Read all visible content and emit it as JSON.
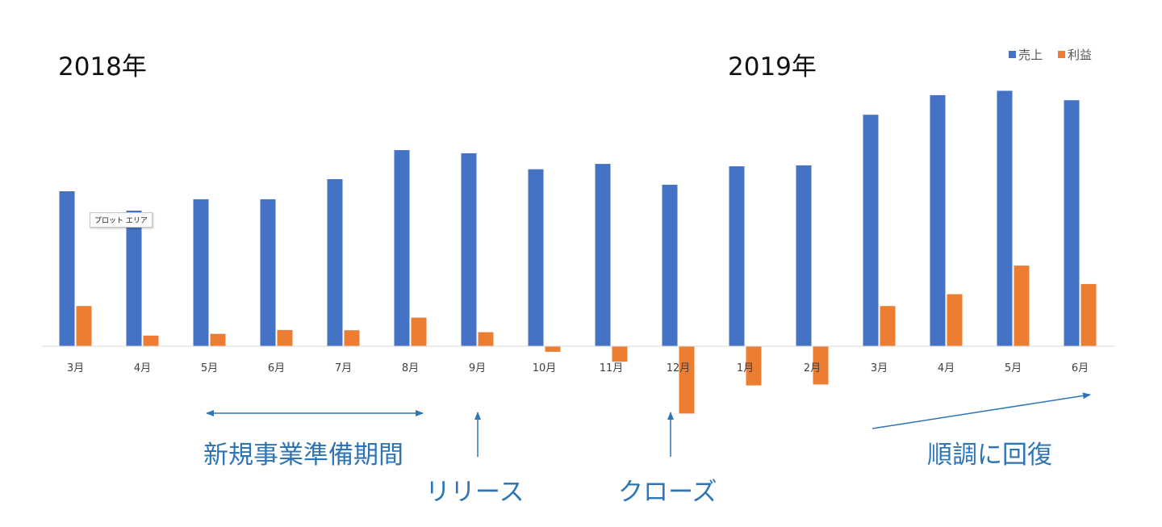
{
  "year_labels": [
    "2018年",
    "2019年"
  ],
  "tooltip": "プロット エリア",
  "colors": {
    "sales": "#4472c4",
    "profit": "#ed7d31",
    "annotation": "#2e75b6"
  },
  "chart_data": {
    "type": "bar",
    "categories": [
      "3月",
      "4月",
      "5月",
      "6月",
      "7月",
      "8月",
      "9月",
      "10月",
      "11月",
      "12月",
      "1月",
      "2月",
      "3月",
      "4月",
      "5月",
      "6月"
    ],
    "series": [
      {
        "name": "売上",
        "color": "#4472c4",
        "values": [
          640,
          560,
          607,
          607,
          690,
          810,
          797,
          731,
          753,
          667,
          743,
          747,
          956,
          1037,
          1055,
          1016
        ]
      },
      {
        "name": "利益",
        "color": "#ed7d31",
        "values": [
          166,
          44,
          51,
          67,
          66,
          118,
          58,
          -23,
          -64,
          -278,
          -162,
          -158,
          166,
          215,
          333,
          257
        ]
      }
    ],
    "legend_position": "top-right",
    "grid": false
  },
  "annotations": [
    {
      "text": "新規事業準備期間"
    },
    {
      "text": "リリース"
    },
    {
      "text": "クローズ"
    },
    {
      "text": "順調に回復"
    }
  ]
}
